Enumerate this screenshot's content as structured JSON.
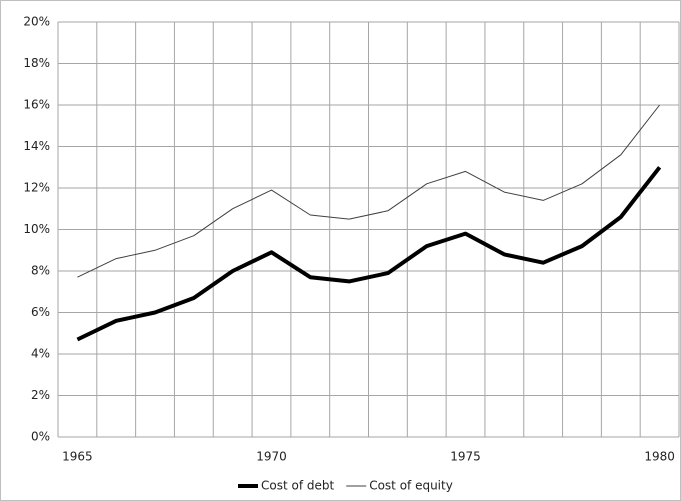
{
  "chart_data": {
    "type": "line",
    "categories": [
      "1965",
      null,
      null,
      null,
      null,
      "1970",
      null,
      null,
      null,
      null,
      "1975",
      null,
      null,
      null,
      null,
      "1980"
    ],
    "series": [
      {
        "name": "Cost of debt",
        "color": "#000000",
        "values": [
          4.7,
          5.6,
          6.0,
          6.7,
          8.0,
          8.9,
          7.7,
          7.5,
          7.9,
          9.2,
          9.8,
          8.8,
          8.4,
          9.2,
          10.6,
          13.0
        ]
      },
      {
        "name": "Cost of equity",
        "color": "#404040",
        "values": [
          7.7,
          8.6,
          9.0,
          9.7,
          11.0,
          11.9,
          10.7,
          10.5,
          10.9,
          12.2,
          12.8,
          11.8,
          11.4,
          12.2,
          13.6,
          16.0
        ]
      }
    ],
    "ylim": [
      0,
      20
    ],
    "yticks": [
      {
        "value": 0,
        "label": "0%"
      },
      {
        "value": 2,
        "label": "2%"
      },
      {
        "value": 4,
        "label": "4%"
      },
      {
        "value": 6,
        "label": "6%"
      },
      {
        "value": 8,
        "label": "8%"
      },
      {
        "value": 10,
        "label": "10%"
      },
      {
        "value": 12,
        "label": "12%"
      },
      {
        "value": 14,
        "label": "14%"
      },
      {
        "value": 16,
        "label": "16%"
      },
      {
        "value": 18,
        "label": "18%"
      },
      {
        "value": 20,
        "label": "20%"
      }
    ],
    "grid": true,
    "legend": "bottom"
  }
}
